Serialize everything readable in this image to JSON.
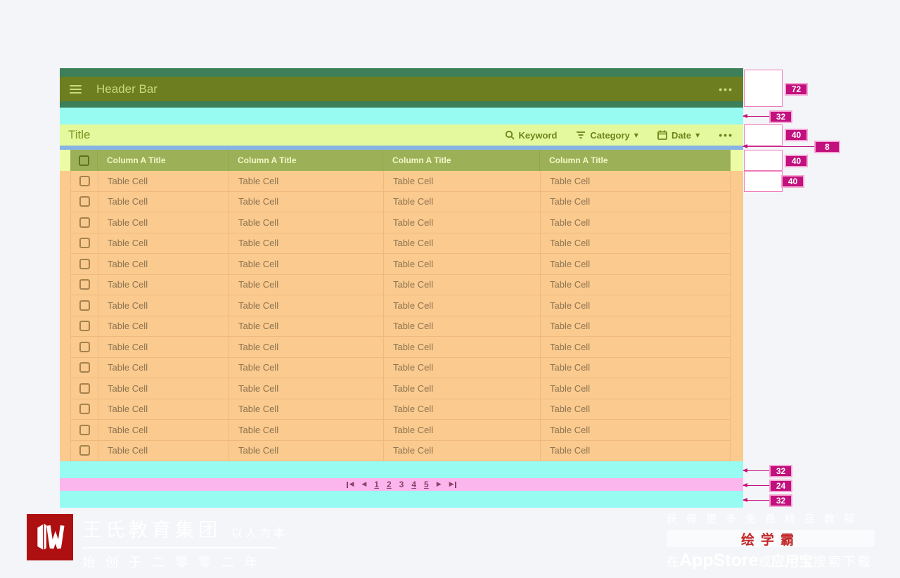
{
  "header_bar": {
    "title": "Header Bar",
    "more": "•••"
  },
  "title_bar": {
    "title": "Title",
    "keyword": "Keyword",
    "category": "Category",
    "date": "Date",
    "more": "•••"
  },
  "table": {
    "columns": [
      "Column A Title",
      "Column A Title",
      "Column A Title",
      "Column A Title"
    ],
    "cell_text": "Table Cell",
    "row_count": 14
  },
  "pagination": {
    "pages": [
      "1",
      "2",
      "3",
      "4",
      "5"
    ],
    "current": "3"
  },
  "annotations": {
    "header_height": "72",
    "gap_top": "32",
    "title_height": "40",
    "divider_height": "8",
    "table_header_height": "40",
    "row_height": "40",
    "gap_bottom_1": "32",
    "pagination_height": "24",
    "gap_bottom_2": "32"
  },
  "icons": {
    "caret": "▼",
    "tri_left": "◀",
    "tri_right": "▶"
  },
  "watermark_left": {
    "company": "王氏教育集团",
    "slogan": "以人为本",
    "since": "始创于二零零二年"
  },
  "watermark_right": {
    "line1": "获得更多免费精品教程",
    "brand": "绘学霸",
    "l3_prefix": "在",
    "l3_store1": "AppStore",
    "l3_or": "或",
    "l3_store2": "应用宝",
    "l3_suffix": "搜索下载"
  },
  "colors": {
    "page_bg": "#f4f5f8",
    "teal": "#3c7f58",
    "olive_bar": "#6c7e1f",
    "cyan_strip": "#97fbf2",
    "title_bar_bg": "#e4f99d",
    "blue_strip": "#87b3e2",
    "table_header_bg": "#9cb157",
    "row_bg": "#fbca8e",
    "pink_strip": "#fcb6ee",
    "badge_magenta": "#c2107e",
    "logo_red": "#ae0f11",
    "brand_red": "#c3282a"
  }
}
